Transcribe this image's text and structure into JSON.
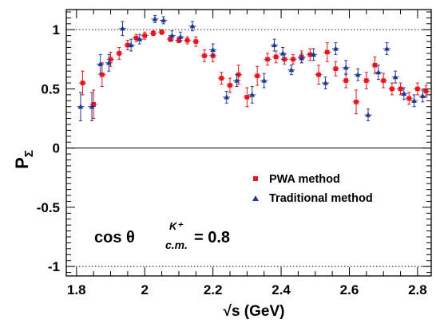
{
  "chart_data": {
    "type": "scatter",
    "xlabel": "√s (GeV)",
    "ylabel": "P",
    "ylabel_subscript": "Σ",
    "xlim": [
      1.77,
      2.84
    ],
    "ylim": [
      -1.08,
      1.17
    ],
    "x_ticks": [
      1.8,
      2.0,
      2.2,
      2.4,
      2.6,
      2.8
    ],
    "x_tick_labels": [
      "1.8",
      "2",
      "2.2",
      "2.4",
      "2.6",
      "2.8"
    ],
    "y_ticks": [
      -1,
      -0.5,
      0,
      0.5,
      1
    ],
    "y_tick_labels": [
      "-1",
      "-0.5",
      "0",
      "0.5",
      "1"
    ],
    "reference_lines": [
      1,
      -1
    ],
    "zero_line": 0,
    "grid": false,
    "legend_position": "lower-right",
    "annotation": {
      "prefix": "cos θ",
      "superscript": "K⁺",
      "subscript": "c.m.",
      "suffix": "= 0.8"
    },
    "series": [
      {
        "name": "PWA method",
        "marker": "square",
        "color": "#e8141e",
        "x": [
          1.818,
          1.85,
          1.875,
          1.9,
          1.925,
          1.95,
          1.975,
          2.0,
          2.025,
          2.05,
          2.075,
          2.1,
          2.125,
          2.15,
          2.175,
          2.2,
          2.225,
          2.25,
          2.275,
          2.3,
          2.33,
          2.36,
          2.385,
          2.41,
          2.435,
          2.46,
          2.485,
          2.51,
          2.535,
          2.56,
          2.59,
          2.62,
          2.65,
          2.675,
          2.7,
          2.725,
          2.75,
          2.775,
          2.8,
          2.825
        ],
        "y": [
          0.55,
          0.37,
          0.62,
          0.75,
          0.8,
          0.87,
          0.93,
          0.95,
          0.97,
          0.98,
          0.92,
          0.91,
          0.91,
          0.9,
          0.78,
          0.78,
          0.59,
          0.53,
          0.62,
          0.43,
          0.61,
          0.75,
          0.77,
          0.75,
          0.75,
          0.77,
          0.79,
          0.62,
          0.81,
          0.67,
          0.57,
          0.39,
          0.57,
          0.7,
          0.57,
          0.5,
          0.5,
          0.42,
          0.5,
          0.48
        ],
        "yerr": [
          0.1,
          0.12,
          0.1,
          0.06,
          0.05,
          0.04,
          0.03,
          0.03,
          0.02,
          0.02,
          0.02,
          0.02,
          0.03,
          0.04,
          0.05,
          0.05,
          0.05,
          0.06,
          0.08,
          0.08,
          0.08,
          0.05,
          0.05,
          0.04,
          0.04,
          0.05,
          0.05,
          0.08,
          0.08,
          0.06,
          0.06,
          0.1,
          0.07,
          0.07,
          0.06,
          0.05,
          0.05,
          0.05,
          0.05,
          0.05
        ]
      },
      {
        "name": "Traditional method",
        "marker": "triangle",
        "color": "#1f3a93",
        "x": [
          1.812,
          1.845,
          1.87,
          1.895,
          1.935,
          1.96,
          1.985,
          2.03,
          2.055,
          2.08,
          2.105,
          2.14,
          2.2,
          2.24,
          2.27,
          2.315,
          2.35,
          2.38,
          2.405,
          2.43,
          2.46,
          2.495,
          2.53,
          2.56,
          2.59,
          2.625,
          2.655,
          2.685,
          2.71,
          2.735,
          2.76,
          2.79,
          2.815
        ],
        "y": [
          0.35,
          0.35,
          0.71,
          0.72,
          1.01,
          0.87,
          0.92,
          1.09,
          1.08,
          0.95,
          0.94,
          1.03,
          0.83,
          0.43,
          0.57,
          0.45,
          0.57,
          0.87,
          0.8,
          0.66,
          0.76,
          0.79,
          0.55,
          0.84,
          0.68,
          0.62,
          0.28,
          0.64,
          0.84,
          0.6,
          0.46,
          0.4,
          0.44
        ],
        "yerr": [
          0.12,
          0.12,
          0.08,
          0.07,
          0.06,
          0.05,
          0.04,
          0.03,
          0.03,
          0.04,
          0.04,
          0.04,
          0.05,
          0.05,
          0.05,
          0.07,
          0.06,
          0.05,
          0.05,
          0.04,
          0.04,
          0.05,
          0.05,
          0.05,
          0.06,
          0.05,
          0.05,
          0.06,
          0.05,
          0.05,
          0.05,
          0.05,
          0.05
        ]
      }
    ]
  }
}
